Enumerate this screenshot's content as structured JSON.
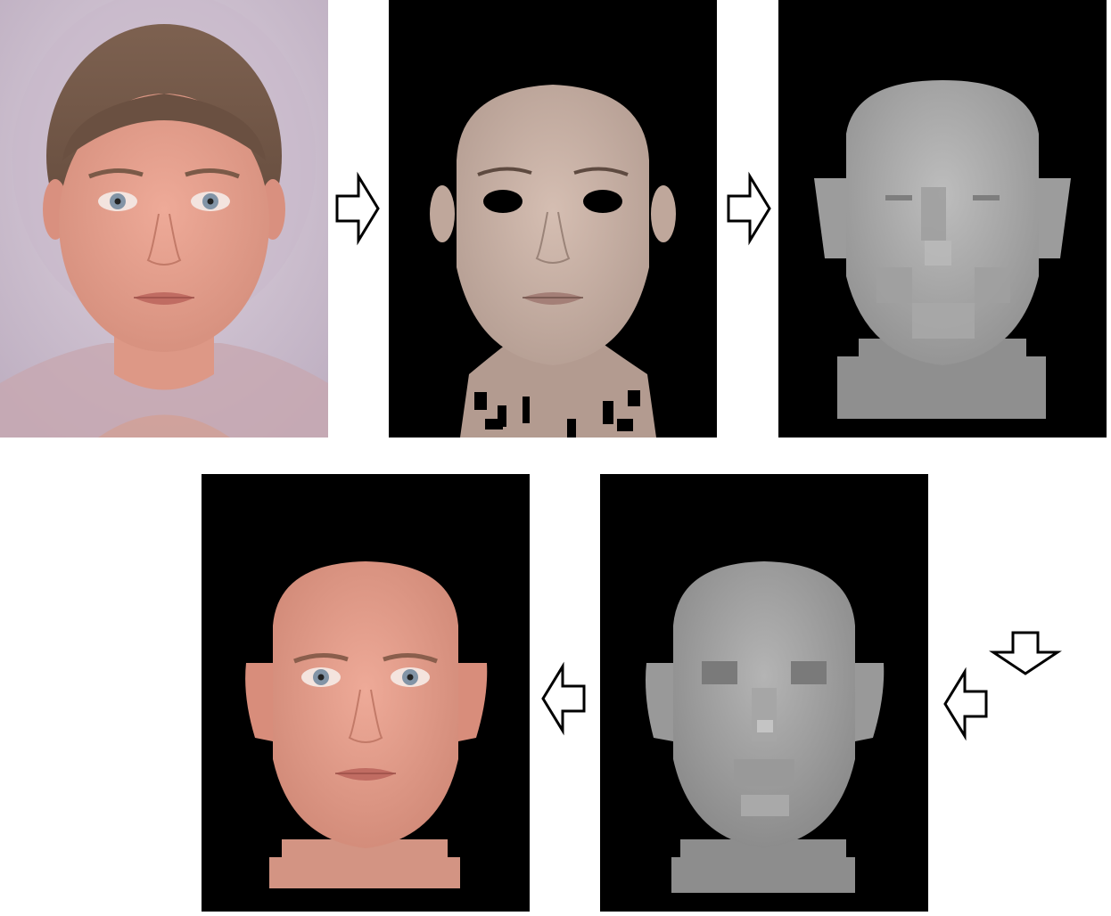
{
  "diagram": {
    "panel_order": [
      "original-composite-photo",
      "masked-skin-texture",
      "coarse-depth-map",
      "refined-depth-map",
      "final-textured-face"
    ],
    "colors": {
      "background": "#ffffff",
      "panel_black": "#000000",
      "photo_background": "#cdbfce",
      "skin": "#e3a08f",
      "skin_desaturated": "#c9b2a6",
      "hair": "#6e5444",
      "iris": "#8294a6",
      "depth_gray": "#a8a8a8",
      "arrow_stroke": "#000000",
      "arrow_fill": "#ffffff"
    },
    "arrows": [
      {
        "direction": "right",
        "from": "original-composite-photo",
        "to": "masked-skin-texture"
      },
      {
        "direction": "right",
        "from": "masked-skin-texture",
        "to": "coarse-depth-map"
      },
      {
        "direction": "down",
        "from": "coarse-depth-map",
        "to": "refined-depth-map"
      },
      {
        "direction": "left",
        "from": "refined-depth-map",
        "to": "refined-depth-map"
      },
      {
        "direction": "left",
        "from": "refined-depth-map",
        "to": "final-textured-face"
      }
    ]
  }
}
